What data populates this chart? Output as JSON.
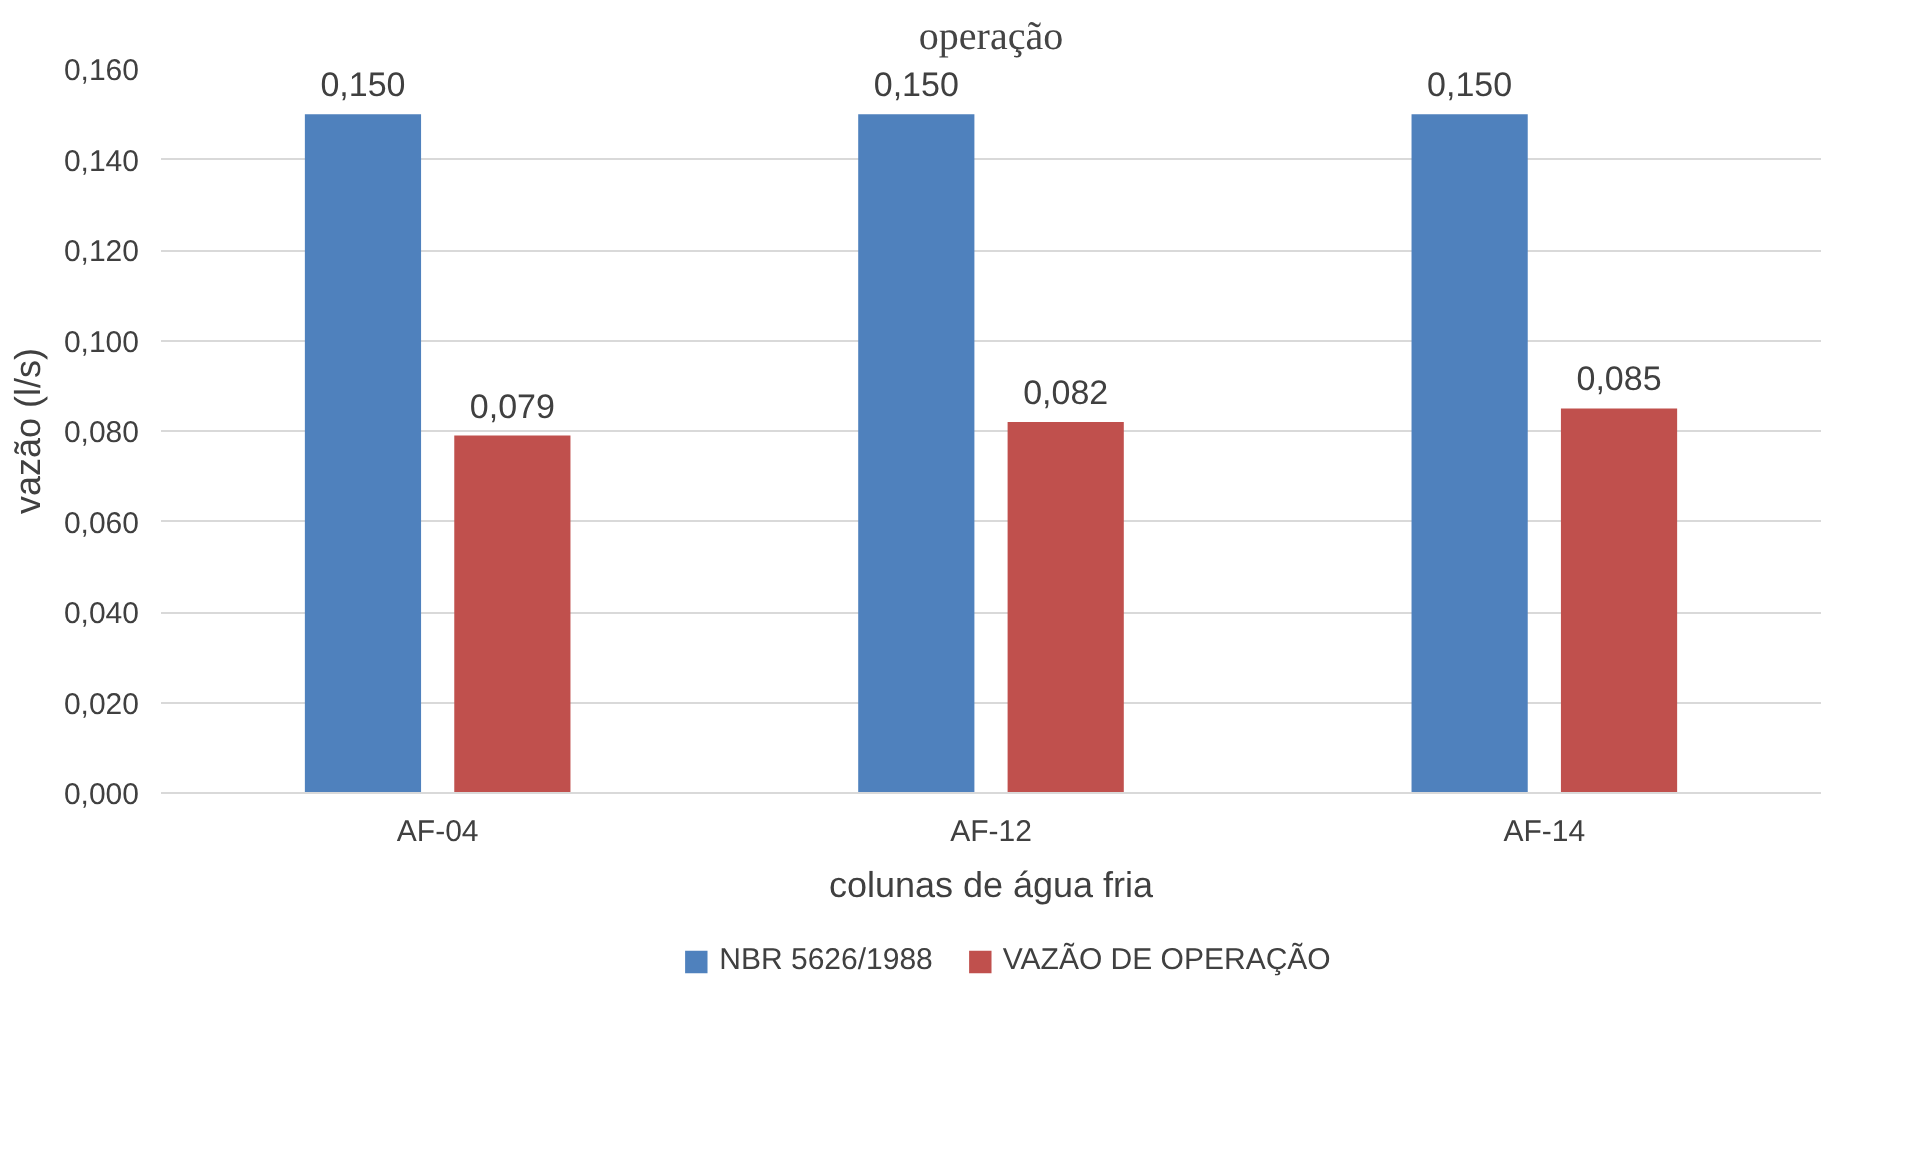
{
  "chart_data": {
    "type": "bar",
    "title": "operação",
    "xlabel": "colunas de água fria",
    "ylabel": "vazão (l/s)",
    "categories": [
      "AF-04",
      "AF-12",
      "AF-14"
    ],
    "series": [
      {
        "name": "NBR 5626/1988",
        "color": "#4f81bd",
        "values": [
          0.15,
          0.15,
          0.15
        ],
        "value_labels": [
          "0,150",
          "0,150",
          "0,150"
        ]
      },
      {
        "name": "VAZÃO DE OPERAÇÃO",
        "color": "#c0504d",
        "values": [
          0.079,
          0.082,
          0.085
        ],
        "value_labels": [
          "0,079",
          "0,082",
          "0,085"
        ]
      }
    ],
    "ylim": [
      0,
      0.16
    ],
    "yticks": [
      {
        "value": 0,
        "label": "0,000"
      },
      {
        "value": 0.02,
        "label": "0,020"
      },
      {
        "value": 0.04,
        "label": "0,040"
      },
      {
        "value": 0.06,
        "label": "0,060"
      },
      {
        "value": 0.08,
        "label": "0,080"
      },
      {
        "value": 0.1,
        "label": "0,100"
      },
      {
        "value": 0.12,
        "label": "0,120"
      },
      {
        "value": 0.14,
        "label": "0,140"
      },
      {
        "value": 0.16,
        "label": "0,160"
      }
    ],
    "grid": "y",
    "legend": "bottom"
  }
}
